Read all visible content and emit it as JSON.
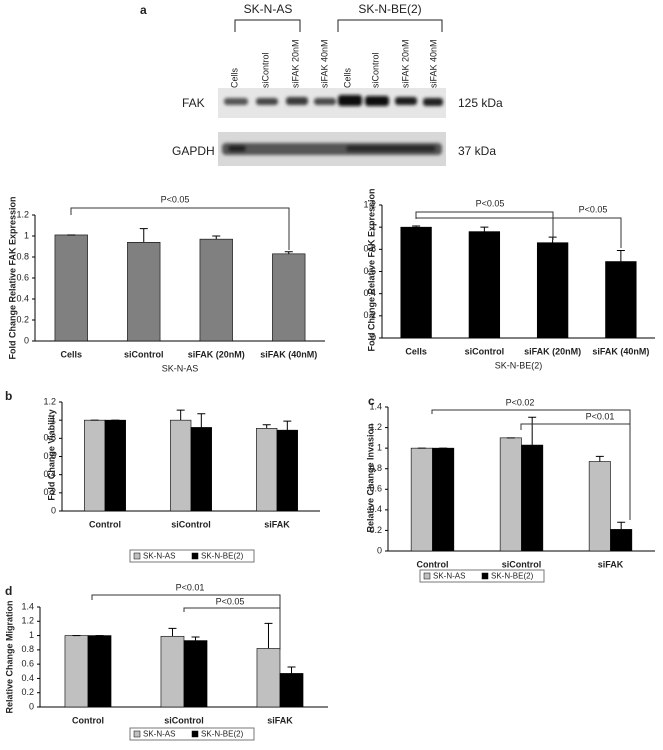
{
  "blot": {
    "panel_label": "a",
    "groups": [
      "SK-N-AS",
      "SK-N-BE(2)"
    ],
    "lanes": [
      "Cells",
      "siControl",
      "siFAK 20nM",
      "siFAK 40nM",
      "Cells",
      "siControl",
      "siFAK 20nM",
      "siFAK 40nM"
    ],
    "rows": [
      {
        "name": "FAK",
        "size": "125 kDa"
      },
      {
        "name": "GAPDH",
        "size": "37 kDa"
      }
    ]
  },
  "chart_data": [
    {
      "type": "bar",
      "ylabel": "Fold Change Relative FAK Expression",
      "xlabel": "SK-N-AS",
      "categories": [
        "Cells",
        "siControl",
        "siFAK (20nM)",
        "siFAK (40nM)"
      ],
      "values": [
        1.01,
        0.94,
        0.97,
        0.83
      ],
      "errors": [
        0,
        0.13,
        0.03,
        0.02
      ],
      "color": "#808080",
      "ylim": [
        0,
        1.2
      ],
      "yticks": [
        0,
        0.2,
        0.4,
        0.6,
        0.8,
        1,
        1.2
      ],
      "annotations": [
        "P<0.05"
      ]
    },
    {
      "type": "bar",
      "ylabel": "Fold Change Relative FAK Expression",
      "xlabel": "SK-N-BE(2)",
      "categories": [
        "Cells",
        "siControl",
        "siFAK (20nM)",
        "siFAK (40nM)"
      ],
      "values": [
        1.0,
        0.96,
        0.86,
        0.69
      ],
      "errors": [
        0.01,
        0.04,
        0.05,
        0.1
      ],
      "color": "#000000",
      "ylim": [
        0,
        1.2
      ],
      "yticks": [
        0,
        0.2,
        0.4,
        0.6,
        0.8,
        1,
        1.2
      ],
      "annotations": [
        "P<0.05",
        "P<0.05"
      ]
    },
    {
      "type": "grouped_bar",
      "panel_label": "b",
      "ylabel": "Fold Change Viability",
      "categories": [
        "Control",
        "siControl",
        "siFAK"
      ],
      "series": [
        {
          "name": "SK-N-AS",
          "color": "#c0c0c0",
          "values": [
            1.0,
            1.0,
            0.91
          ],
          "errors": [
            0,
            0.11,
            0.04
          ]
        },
        {
          "name": "SK-N-BE(2)",
          "color": "#000000",
          "values": [
            1.0,
            0.92,
            0.89
          ],
          "errors": [
            0,
            0.15,
            0.1
          ]
        }
      ],
      "ylim": [
        0,
        1.2
      ],
      "yticks": [
        0,
        0.2,
        0.4,
        0.6,
        0.8,
        1,
        1.2
      ],
      "annotations": []
    },
    {
      "type": "grouped_bar",
      "panel_label": "c",
      "ylabel": "Relative Change Invasion",
      "categories": [
        "Control",
        "siControl",
        "siFAK"
      ],
      "series": [
        {
          "name": "SK-N-AS",
          "color": "#c0c0c0",
          "values": [
            1.0,
            1.1,
            0.87
          ],
          "errors": [
            0,
            0,
            0.05
          ]
        },
        {
          "name": "SK-N-BE(2)",
          "color": "#000000",
          "values": [
            1.0,
            1.03,
            0.21
          ],
          "errors": [
            0,
            0.27,
            0.07
          ]
        }
      ],
      "ylim": [
        0,
        1.4
      ],
      "yticks": [
        0,
        0.2,
        0.4,
        0.6,
        0.8,
        1,
        1.2,
        1.4
      ],
      "annotations": [
        "P<0.02",
        "P<0.01"
      ]
    },
    {
      "type": "grouped_bar",
      "panel_label": "d",
      "ylabel": "Relative Change Migration",
      "categories": [
        "Control",
        "siControl",
        "siFAK"
      ],
      "series": [
        {
          "name": "SK-N-AS",
          "color": "#c0c0c0",
          "values": [
            1.0,
            0.99,
            0.82
          ],
          "errors": [
            0,
            0.11,
            0.35
          ]
        },
        {
          "name": "SK-N-BE(2)",
          "color": "#000000",
          "values": [
            1.0,
            0.93,
            0.47
          ],
          "errors": [
            0,
            0.05,
            0.09
          ]
        }
      ],
      "ylim": [
        0,
        1.4
      ],
      "yticks": [
        0,
        0.2,
        0.4,
        0.6,
        0.8,
        1,
        1.2,
        1.4
      ],
      "annotations": [
        "P<0.01",
        "P<0.05"
      ]
    }
  ]
}
